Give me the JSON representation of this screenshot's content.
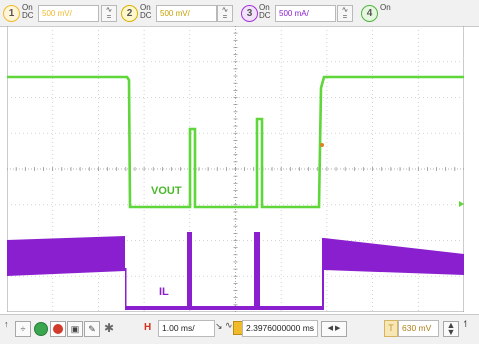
{
  "colors": {
    "ch1": "#f0ba2a",
    "ch2": "#d8b000",
    "ch3": "#a235d6",
    "ch4": "#4fb33f",
    "trace_vout": "#5fd63a",
    "trace_il": "#8a1fcf",
    "grid": "#c6c6c6",
    "trigger": "#e08020",
    "timebase": "#d4301c",
    "trigger_level": "#e6b93f"
  },
  "channels": [
    {
      "num": "1",
      "state": "On",
      "coupling": "DC",
      "scale": "500 mV/",
      "color": "#f0ba2a"
    },
    {
      "num": "2",
      "state": "On",
      "coupling": "DC",
      "scale": "500 mV/",
      "color": "#d8b000"
    },
    {
      "num": "3",
      "state": "On",
      "coupling": "DC",
      "scale": "500 mA/",
      "color": "#a235d6"
    },
    {
      "num": "4",
      "state": "On",
      "coupling": ""
    }
  ],
  "labels": {
    "vout": "VOUT",
    "il": "IL"
  },
  "bottom": {
    "time_icon": "H",
    "timebase": "1.00 ms/",
    "position": "2.3976000000 ms",
    "trigger_icon": "T",
    "trigger_level": "630 mV"
  }
}
